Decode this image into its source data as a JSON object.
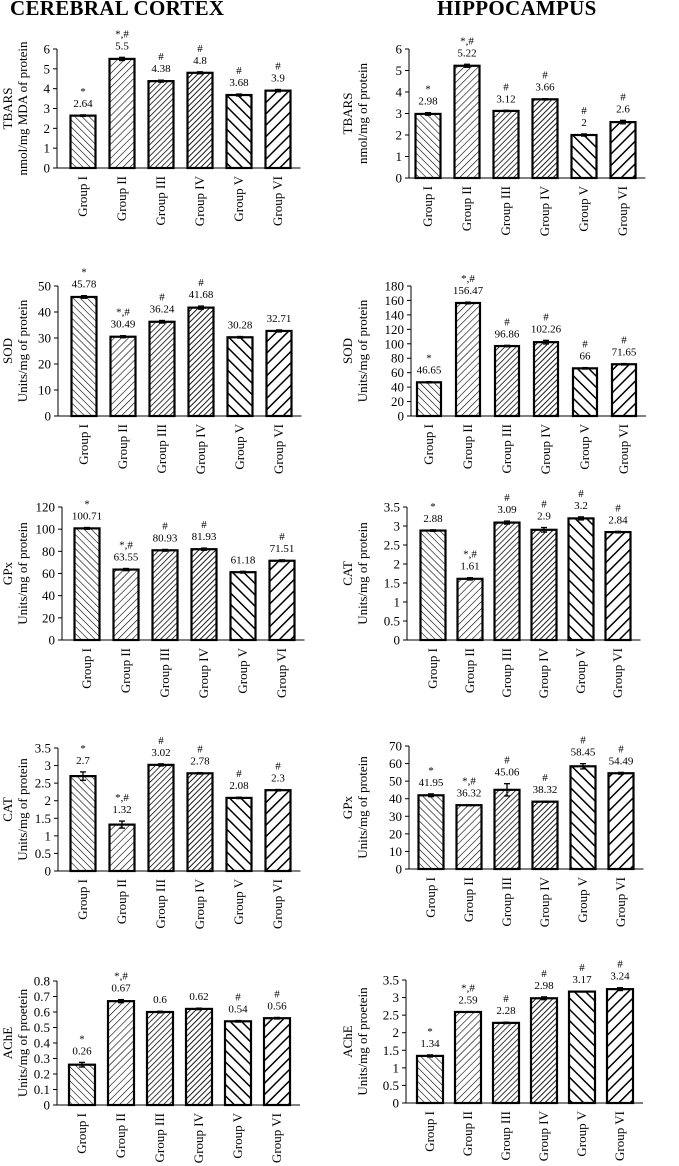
{
  "columns": {
    "left": "CEREBRAL CORTEX",
    "right": "HIPPOCAMPUS"
  },
  "chart_data": [
    {
      "id": "cortex-tbars",
      "column": "left",
      "type": "bar",
      "ylabel_lines": [
        "TBARS",
        "nmol/mg MDA of protein"
      ],
      "categories": [
        "Group I",
        "Group II",
        "Group III",
        "Group IV",
        "Group V",
        "Group VI"
      ],
      "values": [
        2.64,
        5.5,
        4.38,
        4.8,
        3.68,
        3.9
      ],
      "errors": [
        0.04,
        0.08,
        0.05,
        0.05,
        0.05,
        0.06
      ],
      "value_labels": [
        "2.64",
        "5.5",
        "4.38",
        "4.8",
        "3.68",
        "3.9"
      ],
      "marks": [
        "*",
        "*,#",
        "#",
        "#",
        "#",
        "#"
      ],
      "ylim": [
        0,
        6
      ],
      "yticks": [
        0,
        1,
        2,
        3,
        4,
        5,
        6
      ],
      "ytick_labels": [
        "0",
        "1",
        "2",
        "3",
        "4",
        "5",
        "6"
      ]
    },
    {
      "id": "hippo-tbars",
      "column": "right",
      "type": "bar",
      "ylabel_lines": [
        "TBARS",
        "nmol/mg of protein"
      ],
      "categories": [
        "Group I",
        "Group II",
        "Group III",
        "Group IV",
        "Group V",
        "Group VI"
      ],
      "values": [
        2.98,
        5.22,
        3.12,
        3.66,
        2.0,
        2.6
      ],
      "errors": [
        0.06,
        0.07,
        0.03,
        0.03,
        0.05,
        0.08
      ],
      "value_labels": [
        "2.98",
        "5.22",
        "3.12",
        "3.66",
        "2",
        "2.6"
      ],
      "marks": [
        "*",
        "*,#",
        "#",
        "#",
        "#",
        "#"
      ],
      "ylim": [
        0,
        6
      ],
      "yticks": [
        0,
        1,
        2,
        3,
        4,
        5,
        6
      ],
      "ytick_labels": [
        "0",
        "1",
        "2",
        "3",
        "4",
        "5",
        "6"
      ]
    },
    {
      "id": "cortex-sod",
      "column": "left",
      "type": "bar",
      "ylabel_lines": [
        "SOD",
        "Units/mg of protein"
      ],
      "categories": [
        "Group I",
        "Group II",
        "Group III",
        "Group IV",
        "Group V",
        "Group VI"
      ],
      "values": [
        45.78,
        30.49,
        36.24,
        41.68,
        30.28,
        32.71
      ],
      "errors": [
        0.5,
        0.4,
        0.5,
        0.6,
        0.3,
        0.4
      ],
      "value_labels": [
        "45.78",
        "30.49",
        "36.24",
        "41.68",
        "30.28",
        "32.71"
      ],
      "marks": [
        "*",
        "*,#",
        "#",
        "#",
        "",
        ""
      ],
      "ylim": [
        0,
        50
      ],
      "yticks": [
        0,
        10,
        20,
        30,
        40,
        50
      ],
      "ytick_labels": [
        "0",
        "10",
        "20",
        "30",
        "40",
        "50"
      ]
    },
    {
      "id": "hippo-sod",
      "column": "right",
      "type": "bar",
      "ylabel_lines": [
        "SOD",
        "Units/mg of protein"
      ],
      "categories": [
        "Group I",
        "Group II",
        "Group III",
        "Group IV",
        "Group V",
        "Group VI"
      ],
      "values": [
        46.65,
        156.47,
        96.86,
        102.26,
        66,
        71.65
      ],
      "errors": [
        0.8,
        1.2,
        1.0,
        2.5,
        1.0,
        1.0
      ],
      "value_labels": [
        "46.65",
        "156.47",
        "96.86",
        "102.26",
        "66",
        "71.65"
      ],
      "marks": [
        "*",
        "*,#",
        "#",
        "#",
        "#",
        "#"
      ],
      "ylim": [
        0,
        180
      ],
      "yticks": [
        0,
        20,
        40,
        60,
        80,
        100,
        120,
        140,
        160,
        180
      ],
      "ytick_labels": [
        "0",
        "20",
        "40",
        "60",
        "80",
        "100",
        "120",
        "140",
        "160",
        "180"
      ]
    },
    {
      "id": "cortex-gpx",
      "column": "left",
      "type": "bar",
      "ylabel_lines": [
        "GPx",
        "Units/mg of protein"
      ],
      "categories": [
        "Group I",
        "Group II",
        "Group III",
        "Group IV",
        "Group V",
        "Group VI"
      ],
      "values": [
        100.71,
        63.55,
        80.93,
        81.93,
        61.18,
        71.51
      ],
      "errors": [
        0.8,
        1.0,
        0.8,
        1.0,
        0.8,
        0.8
      ],
      "value_labels": [
        "100.71",
        "63.55",
        "80.93",
        "81.93",
        "61.18",
        "71.51"
      ],
      "marks": [
        "*",
        "*,#",
        "#",
        "#",
        "",
        "#"
      ],
      "ylim": [
        0,
        120
      ],
      "yticks": [
        0,
        20,
        40,
        60,
        80,
        100,
        120
      ],
      "ytick_labels": [
        "0",
        "20",
        "40",
        "60",
        "80",
        "100",
        "120"
      ]
    },
    {
      "id": "hippo-cat",
      "column": "right",
      "type": "bar",
      "ylabel_lines": [
        "CAT",
        "Units/mg of protein"
      ],
      "categories": [
        "Group I",
        "Group II",
        "Group III",
        "Group IV",
        "Group V",
        "Group VI"
      ],
      "values": [
        2.88,
        1.61,
        3.09,
        2.9,
        3.2,
        2.84
      ],
      "errors": [
        0.02,
        0.03,
        0.04,
        0.06,
        0.04,
        0.02
      ],
      "value_labels": [
        "2.88",
        "1.61",
        "3.09",
        "2.9",
        "3.2",
        "2.84"
      ],
      "marks": [
        "*",
        "*,#",
        "#",
        "#",
        "#",
        "#"
      ],
      "ylim": [
        0,
        3.5
      ],
      "yticks": [
        0,
        0.5,
        1,
        1.5,
        2,
        2.5,
        3,
        3.5
      ],
      "ytick_labels": [
        "0",
        "0.5",
        "1",
        "1.5",
        "2",
        "2.5",
        "3",
        "3.5"
      ]
    },
    {
      "id": "cortex-cat",
      "column": "left",
      "type": "bar",
      "ylabel_lines": [
        "CAT",
        "Units/mg of protein"
      ],
      "categories": [
        "Group I",
        "Group II",
        "Group III",
        "Group IV",
        "Group V",
        "Group VI"
      ],
      "values": [
        2.7,
        1.32,
        3.02,
        2.78,
        2.08,
        2.3
      ],
      "errors": [
        0.12,
        0.1,
        0.03,
        0.02,
        0.02,
        0.02
      ],
      "value_labels": [
        "2.7",
        "1.32",
        "3.02",
        "2.78",
        "2.08",
        "2.3"
      ],
      "marks": [
        "*",
        "*,#",
        "#",
        "#",
        "#",
        "#"
      ],
      "ylim": [
        0,
        3.5
      ],
      "yticks": [
        0,
        0.5,
        1,
        1.5,
        2,
        2.5,
        3,
        3.5
      ],
      "ytick_labels": [
        "0",
        "0.5",
        "1",
        "1.5",
        "2",
        "2.5",
        "3",
        "3.5"
      ]
    },
    {
      "id": "hippo-gpx",
      "column": "right",
      "type": "bar",
      "ylabel_lines": [
        "GPx",
        "Units/mg of protein"
      ],
      "categories": [
        "Group I",
        "Group II",
        "Group III",
        "Group IV",
        "Group V",
        "Group VI"
      ],
      "values": [
        41.95,
        36.32,
        45.06,
        38.32,
        58.45,
        54.49
      ],
      "errors": [
        0.8,
        0.3,
        3.5,
        0.3,
        1.5,
        0.5
      ],
      "value_labels": [
        "41.95",
        "36.32",
        "45.06",
        "38.32",
        "58.45",
        "54.49"
      ],
      "marks": [
        "*",
        "*,#",
        "#",
        "#",
        "#",
        "#"
      ],
      "ylim": [
        0,
        70
      ],
      "yticks": [
        0,
        10,
        20,
        30,
        40,
        50,
        60,
        70
      ],
      "ytick_labels": [
        "0",
        "10",
        "20",
        "30",
        "40",
        "50",
        "60",
        "70"
      ]
    },
    {
      "id": "cortex-ache",
      "column": "left",
      "type": "bar",
      "ylabel_lines": [
        "AChE",
        "Units/mg of proetein"
      ],
      "categories": [
        "Group I",
        "Group II",
        "Group III",
        "Group IV",
        "Group V",
        "Group VI"
      ],
      "values": [
        0.26,
        0.67,
        0.6,
        0.62,
        0.54,
        0.56
      ],
      "errors": [
        0.015,
        0.01,
        0.005,
        0.005,
        0.005,
        0.005
      ],
      "value_labels": [
        "0.26",
        "0.67",
        "0.6",
        "0.62",
        "0.54",
        "0.56"
      ],
      "marks": [
        "*",
        "*,#",
        "",
        "",
        "#",
        "#"
      ],
      "ylim": [
        0,
        0.8
      ],
      "yticks": [
        0,
        0.1,
        0.2,
        0.3,
        0.4,
        0.5,
        0.6,
        0.7,
        0.8
      ],
      "ytick_labels": [
        "0",
        "0.1",
        "0.2",
        "0.3",
        "0.4",
        "0.5",
        "0.6",
        "0.7",
        "0.8"
      ]
    },
    {
      "id": "hippo-ache",
      "column": "right",
      "type": "bar",
      "ylabel_lines": [
        "AChE",
        "Units/mg of proetein"
      ],
      "categories": [
        "Group I",
        "Group II",
        "Group III",
        "Group IV",
        "Group V",
        "Group VI"
      ],
      "values": [
        1.34,
        2.59,
        2.28,
        2.98,
        3.17,
        3.24
      ],
      "errors": [
        0.03,
        0.01,
        0.02,
        0.04,
        0.01,
        0.04
      ],
      "value_labels": [
        "1.34",
        "2.59",
        "2.28",
        "2.98",
        "3.17",
        "3.24"
      ],
      "marks": [
        "*",
        "*,#",
        "#",
        "#",
        "#",
        "#"
      ],
      "ylim": [
        0,
        3.5
      ],
      "yticks": [
        0,
        0.5,
        1,
        1.5,
        2,
        2.5,
        3,
        3.5
      ],
      "ytick_labels": [
        "0",
        "0.5",
        "1",
        "1.5",
        "2",
        "2.5",
        "3",
        "3.5"
      ]
    }
  ]
}
